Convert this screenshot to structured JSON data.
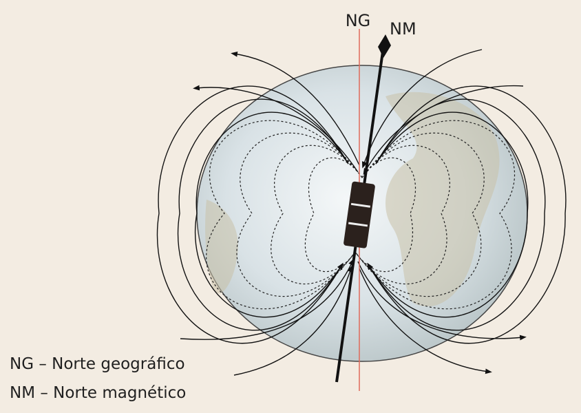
{
  "pole_labels": {
    "geographic": "NG",
    "magnetic": "NM"
  },
  "legend": [
    "NG – Norte geográfico",
    "NM – Norte magnético"
  ]
}
